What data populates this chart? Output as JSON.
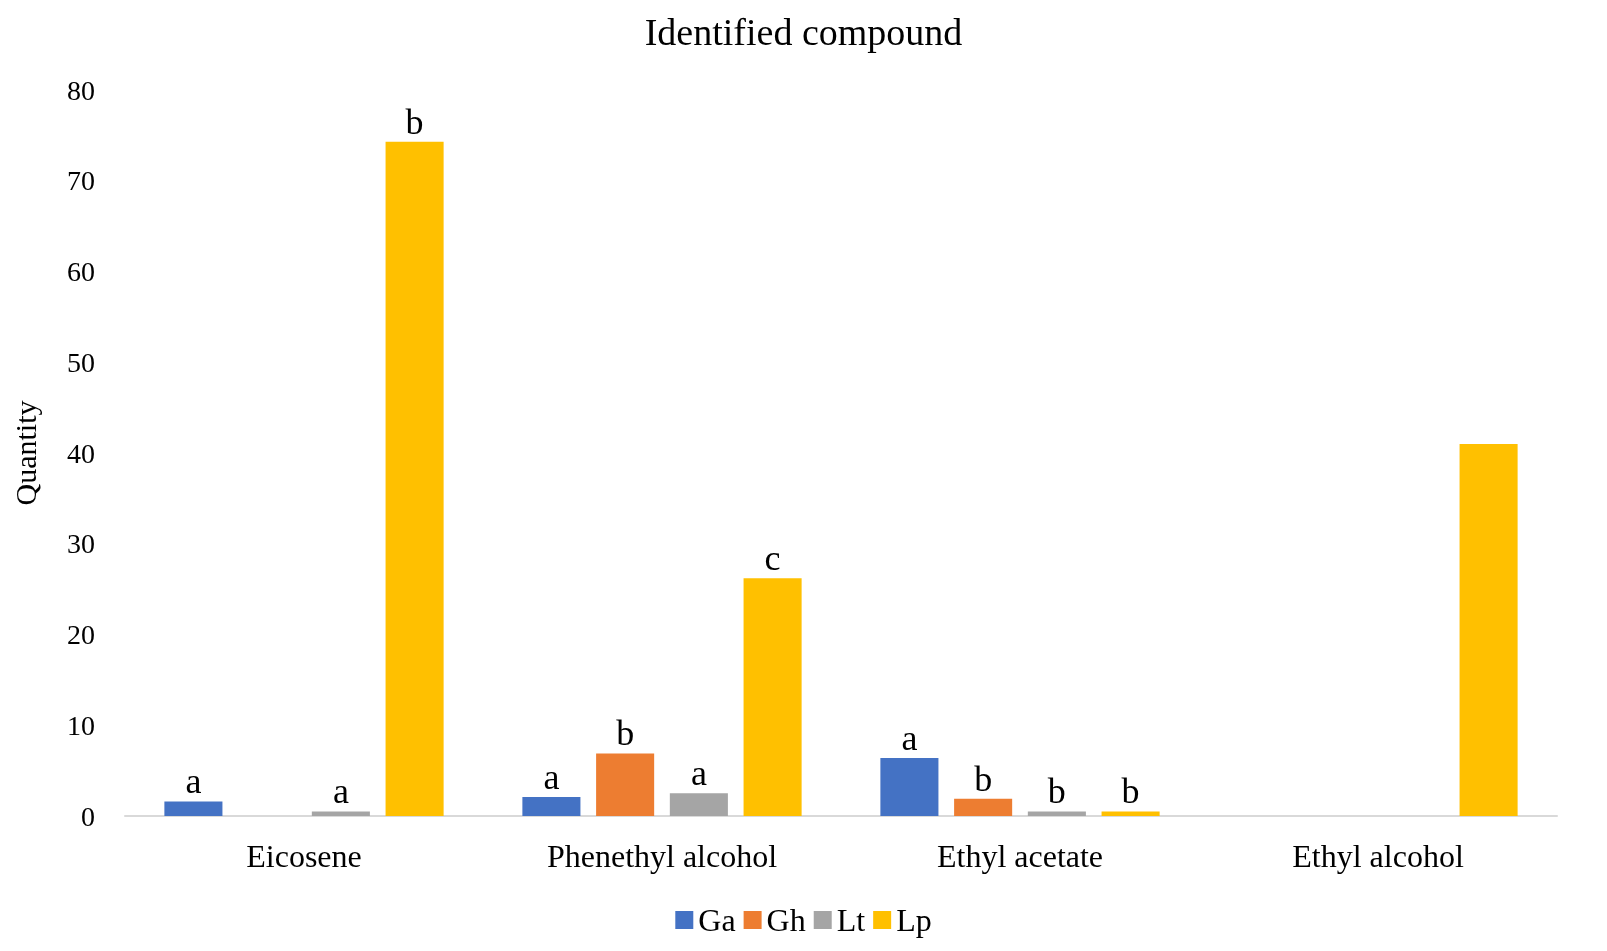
{
  "chart_data": {
    "type": "bar",
    "title": "Identified compound",
    "ylabel": "Quantity",
    "categories": [
      "Eicosene",
      "Phenethyl alcohol",
      "Ethyl acetate",
      "Ethyl alcohol"
    ],
    "series": [
      {
        "name": "Ga",
        "color": "#4472c4",
        "values": [
          1.6,
          2.1,
          6.4,
          null
        ],
        "value_labels": [
          "a",
          "a",
          "a",
          null
        ]
      },
      {
        "name": "Gh",
        "color": "#ed7d31",
        "values": [
          null,
          6.9,
          1.9,
          null
        ],
        "value_labels": [
          null,
          "b",
          "b",
          null
        ]
      },
      {
        "name": "Lt",
        "color": "#a5a5a5",
        "values": [
          0.5,
          2.5,
          0.5,
          null
        ],
        "value_labels": [
          "a",
          "a",
          "b",
          null
        ]
      },
      {
        "name": "Lp",
        "color": "#ffc000",
        "values": [
          74.3,
          26.2,
          0.5,
          41.0
        ],
        "value_labels": [
          "b",
          "c",
          "b",
          null
        ]
      }
    ],
    "ylim": [
      0,
      80
    ],
    "yticks": [
      0,
      10,
      20,
      30,
      40,
      50,
      60,
      70,
      80
    ],
    "grid": false,
    "legend": "bottom"
  }
}
